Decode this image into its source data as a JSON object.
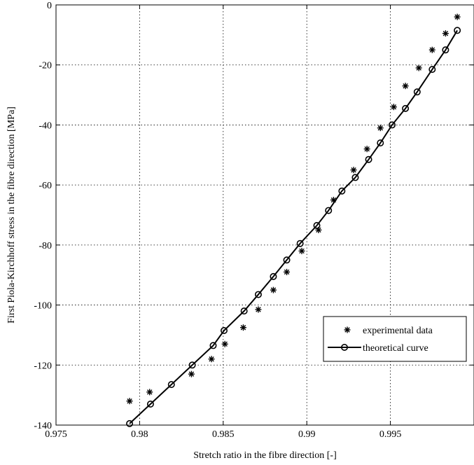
{
  "chart_data": {
    "type": "line",
    "xlabel": "Stretch ratio in the fibre direction [-]",
    "ylabel": "First Piola-Kirchhoff stress in the fibre direction [MPa]",
    "xlim": [
      0.975,
      1.0
    ],
    "ylim": [
      -140,
      0
    ],
    "xticks": [
      0.975,
      0.98,
      0.985,
      0.99,
      0.995
    ],
    "xtick_labels": [
      "0.975",
      "0.98",
      "0.985",
      "0.99",
      "0.995"
    ],
    "yticks": [
      -140,
      -120,
      -100,
      -80,
      -60,
      -40,
      -20,
      0
    ],
    "ytick_labels": [
      "-140",
      "-120",
      "-100",
      "-80",
      "-60",
      "-40",
      "-20",
      "0"
    ],
    "grid": true,
    "legend_position": "lower-right",
    "series": [
      {
        "name": "experimental data",
        "marker": "star",
        "line": false,
        "x": [
          0.9794,
          0.9806,
          0.9831,
          0.9843,
          0.9851,
          0.9862,
          0.9871,
          0.988,
          0.9888,
          0.9897,
          0.9907,
          0.9916,
          0.9928,
          0.9936,
          0.9944,
          0.9952,
          0.9959,
          0.9967,
          0.9975,
          0.9983,
          0.999
        ],
        "y": [
          -132,
          -129,
          -123,
          -118,
          -113,
          -107.5,
          -101.5,
          -95,
          -89,
          -82,
          -75,
          -65,
          -55,
          -48,
          -41,
          -34,
          -27,
          -21,
          -15,
          -9.5,
          -4
        ]
      },
      {
        "name": "theoretical curve",
        "marker": "circle",
        "line": true,
        "x": [
          0.9794,
          0.98065,
          0.9819,
          0.98315,
          0.9844,
          0.98505,
          0.98625,
          0.9871,
          0.988,
          0.9888,
          0.9896,
          0.9906,
          0.9913,
          0.9921,
          0.9929,
          0.9937,
          0.9944,
          0.9951,
          0.9959,
          0.9966,
          0.9975,
          0.9983,
          0.999
        ],
        "y": [
          -139.5,
          -133,
          -126.5,
          -120,
          -113.5,
          -108.5,
          -102,
          -96.5,
          -90.5,
          -85,
          -79.5,
          -73.5,
          -68.5,
          -62,
          -57.5,
          -51.5,
          -46,
          -40,
          -34.5,
          -29,
          -21.5,
          -15,
          -8.5
        ]
      }
    ]
  }
}
